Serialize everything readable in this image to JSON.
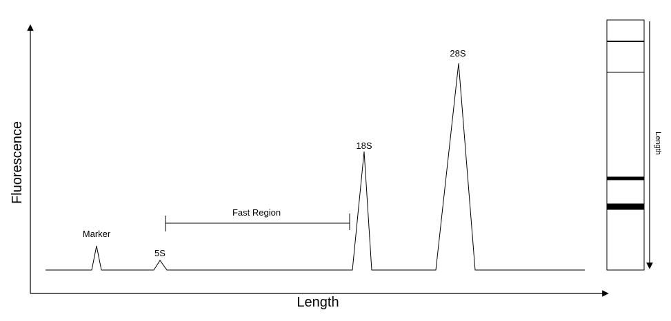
{
  "diagram": {
    "x_axis_label": "Length",
    "y_axis_label": "Fluorescence",
    "gel_axis_label": "Length",
    "peaks": [
      {
        "name": "marker-peak",
        "label": "Marker"
      },
      {
        "name": "5s-peak",
        "label": "5S"
      },
      {
        "name": "18s-peak",
        "label": "18S"
      },
      {
        "name": "28s-peak",
        "label": "28S"
      }
    ],
    "region": {
      "label": "Fast Region"
    }
  }
}
